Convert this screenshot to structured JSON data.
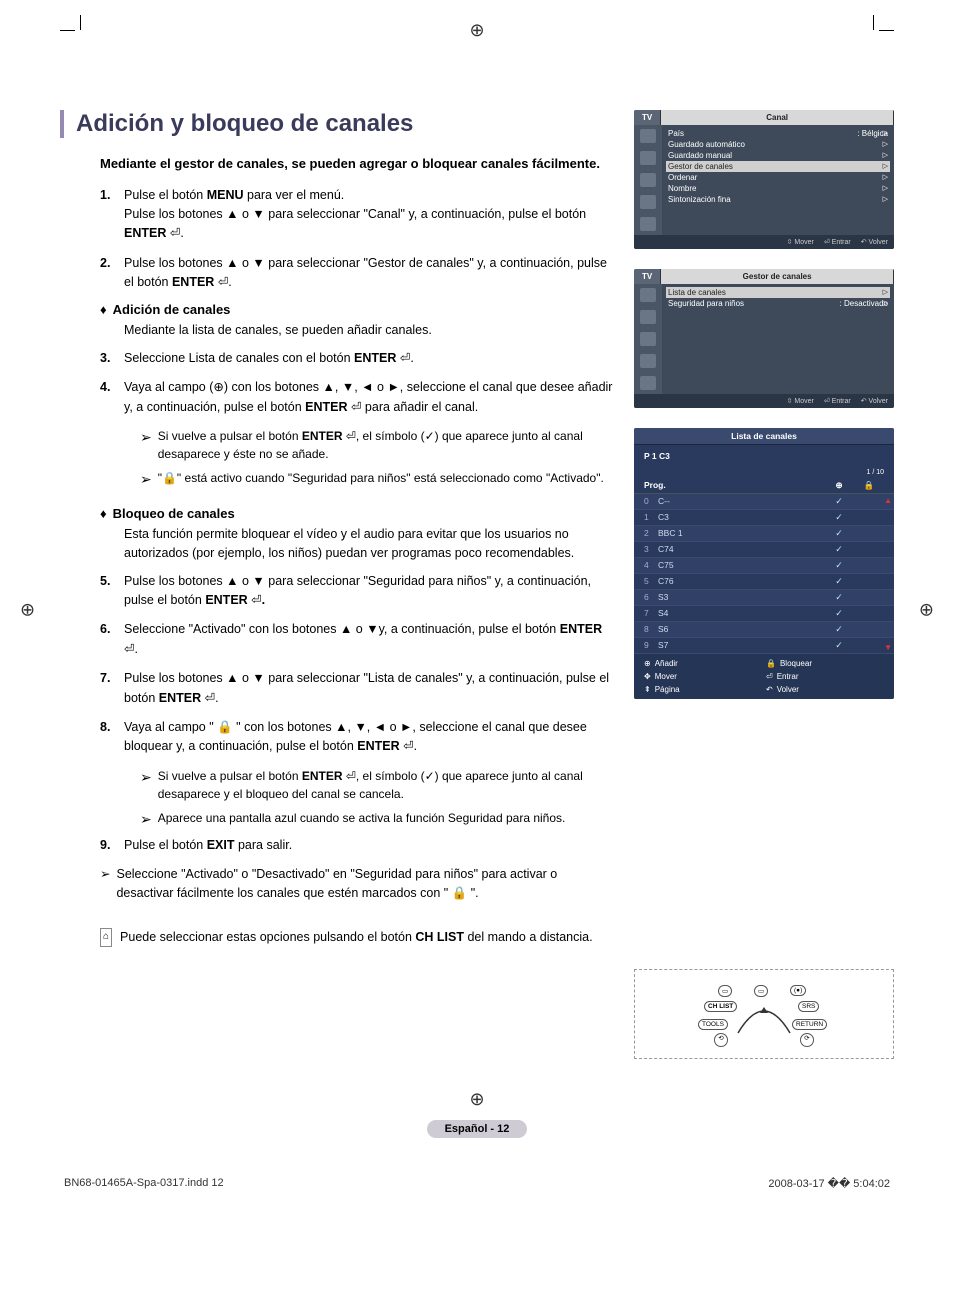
{
  "crop_glyph": "⊕",
  "page": {
    "title": "Adición y bloqueo de canales",
    "intro": "Mediante el gestor de canales, se pueden agregar o bloquear canales fácilmente.",
    "title_color": "#3a3a5a",
    "accent_color": "#958ab0"
  },
  "steps": {
    "s1": "Pulse el botón <b>MENU</b> para ver el menú.<br>Pulse los botones ▲ o ▼ para seleccionar \"Canal\" y, a continuación, pulse el botón <b>ENTER</b> ⏎.",
    "s2": "Pulse los botones ▲ o ▼ para seleccionar \"Gestor de canales\" y, a continuación, pulse el botón <b>ENTER</b> ⏎.",
    "h_add": "Adición de canales",
    "h_add_text": "Mediante la lista de canales, se pueden añadir canales.",
    "s3": "Seleccione Lista de canales con el botón <b>ENTER</b> ⏎.",
    "s4": "Vaya al campo (⊕) con los botones ▲, ▼, ◄ o ►, seleccione el canal que desee añadir y, a continuación, pulse el botón <b>ENTER</b> ⏎ para añadir el canal.",
    "n4a": "Si vuelve a pulsar el botón <b>ENTER</b> ⏎, el símbolo (✓) que aparece junto al canal desaparece y éste no se añade.",
    "n4b": "\"🔒\" está activo cuando \"Seguridad para niños\" está seleccionado como \"Activado\".",
    "h_lock": "Bloqueo de canales",
    "h_lock_text": "Esta función permite bloquear el vídeo y el audio para evitar que los usuarios no autorizados (por ejemplo, los niños) puedan ver programas poco recomendables.",
    "s5": "Pulse los botones ▲ o ▼ para seleccionar \"Seguridad para niños\" y, a continuación, pulse el botón <b>ENTER</b> ⏎<b>.</b>",
    "s6": "Seleccione \"Activado\" con los botones ▲ o ▼y, a continuación, pulse el botón <b>ENTER</b> ⏎.",
    "s7": "Pulse los botones ▲ o ▼ para seleccionar \"Lista de canales\" y, a continuación, pulse el botón <b>ENTER</b> ⏎.",
    "s8": "Vaya al campo \" 🔒 \" con los botones ▲, ▼, ◄ o ►, seleccione el canal que desee bloquear y, a continuación, pulse el botón <b>ENTER</b> ⏎.",
    "n8a": "Si vuelve a pulsar el botón <b>ENTER</b> ⏎, el símbolo (✓) que aparece junto al canal desaparece y el bloqueo del canal se cancela.",
    "n8b": "Aparece una pantalla azul cuando se activa la función Seguridad para niños.",
    "s9": "Pulse el botón <b>EXIT</b> para salir.",
    "post_note": "Seleccione \"Activado\" o \"Desactivado\" en \"Seguridad para niños\" para activar o desactivar fácilmente los canales que estén marcados con \" 🔒 \".",
    "remote_note": "Puede seleccionar estas opciones pulsando el botón <b>CH LIST</b> del mando a distancia."
  },
  "osd1": {
    "tab_left": "TV",
    "tab_right": "Canal",
    "rows": [
      {
        "l": "País",
        "r": ": Bélgica"
      },
      {
        "l": "Guardado automático",
        "r": ""
      },
      {
        "l": "Guardado manual",
        "r": ""
      },
      {
        "l": "Gestor de canales",
        "r": "",
        "hl": true
      },
      {
        "l": "Ordenar",
        "r": ""
      },
      {
        "l": "Nombre",
        "r": ""
      },
      {
        "l": "Sintonización fina",
        "r": ""
      }
    ],
    "foot": {
      "a": "Mover",
      "b": "Entrar",
      "c": "Volver"
    }
  },
  "osd2": {
    "tab_left": "TV",
    "tab_right": "Gestor de canales",
    "rows": [
      {
        "l": "Lista de canales",
        "r": "",
        "hl": true
      },
      {
        "l": "Seguridad para niños",
        "r": ": Desactivado"
      }
    ],
    "foot": {
      "a": "Mover",
      "b": "Entrar",
      "c": "Volver"
    }
  },
  "chlist": {
    "title": "Lista de canales",
    "sub": "P  1  C3",
    "counter": "1 / 10",
    "hdr_prog": "Prog.",
    "plus": "⊕",
    "lock": "🔒",
    "rows": [
      {
        "n": "0",
        "name": "C--",
        "chk": true
      },
      {
        "n": "1",
        "name": "C3",
        "chk": true
      },
      {
        "n": "2",
        "name": "BBC 1",
        "chk": true
      },
      {
        "n": "3",
        "name": "C74",
        "chk": true
      },
      {
        "n": "4",
        "name": "C75",
        "chk": true
      },
      {
        "n": "5",
        "name": "C76",
        "chk": true
      },
      {
        "n": "6",
        "name": "S3",
        "chk": true
      },
      {
        "n": "7",
        "name": "S4",
        "chk": true
      },
      {
        "n": "8",
        "name": "S6",
        "chk": true
      },
      {
        "n": "9",
        "name": "S7",
        "chk": true
      }
    ],
    "actions": {
      "add": "Añadir",
      "lock": "Bloquear",
      "move": "Mover",
      "enter": "Entrar",
      "page": "Página",
      "return": "Volver"
    }
  },
  "remote": {
    "ch_list": "CH LIST",
    "srs": "SRS",
    "tools": "TOOLS",
    "return": "RETURN"
  },
  "footer": "Español - 12",
  "imprint": {
    "l": "BN68-01465A-Spa-0317.indd   12",
    "r": "2008-03-17   �� 5:04:02"
  },
  "colors": {
    "osd_bg": "#3e4a5a",
    "chlist_bg": "#2a3a5e"
  }
}
